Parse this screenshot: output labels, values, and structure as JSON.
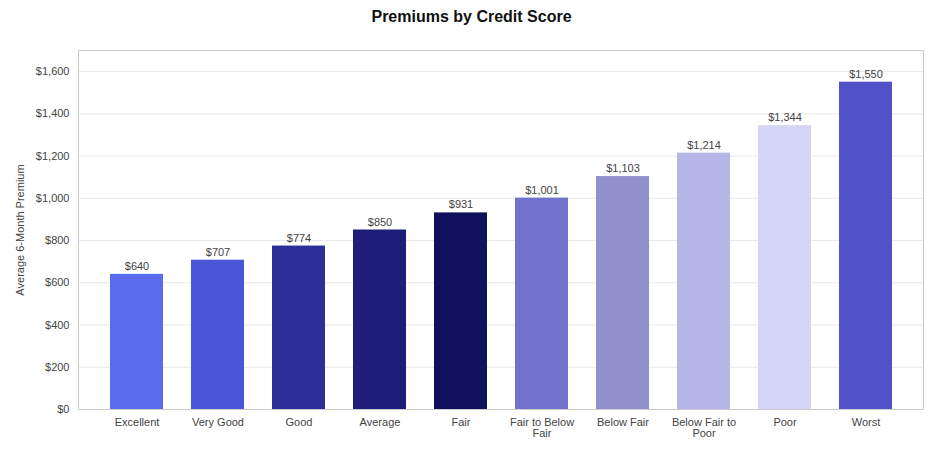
{
  "chart_data": {
    "type": "bar",
    "title": "Premiums by Credit Score",
    "ylabel": "Average 6-Month Premium",
    "categories": [
      "Excellent",
      "Very Good",
      "Good",
      "Average",
      "Fair",
      "Fair to Below\nFair",
      "Below Fair",
      "Below Fair to\nPoor",
      "Poor",
      "Worst"
    ],
    "values": [
      640,
      707,
      774,
      850,
      931,
      1001,
      1103,
      1214,
      1344,
      1550
    ],
    "value_labels": [
      "$640",
      "$707",
      "$774",
      "$850",
      "$931",
      "$1,001",
      "$1,103",
      "$1,214",
      "$1,344",
      "$1,550"
    ],
    "colors": [
      "#5B6BF0",
      "#4A55D8",
      "#2E2E9A",
      "#1E1E7A",
      "#10105A",
      "#7272CC",
      "#9090CC",
      "#B5B5E8",
      "#D5D5F5",
      "#5252C8"
    ],
    "ylim": [
      0,
      1700
    ],
    "yticks": [
      {
        "value": 0,
        "label": "$0"
      },
      {
        "value": 200,
        "label": "$200"
      },
      {
        "value": 400,
        "label": "$400"
      },
      {
        "value": 600,
        "label": "$600"
      },
      {
        "value": 800,
        "label": "$800"
      },
      {
        "value": 1000,
        "label": "$1,000"
      },
      {
        "value": 1200,
        "label": "$1,200"
      },
      {
        "value": 1400,
        "label": "$1,400"
      },
      {
        "value": 1600,
        "label": "$1,600"
      }
    ],
    "grid": true,
    "data_labels": true
  }
}
